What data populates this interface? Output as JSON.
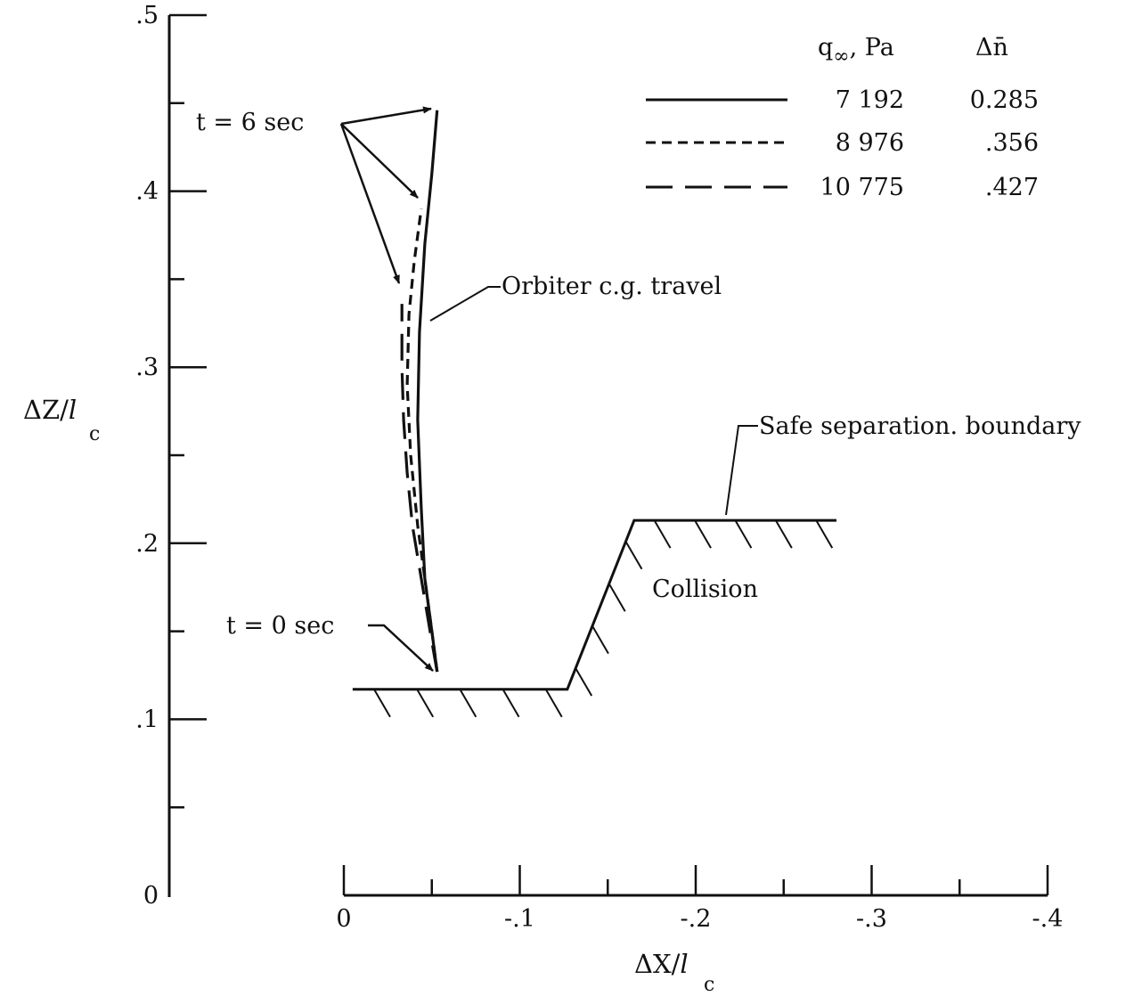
{
  "chart_data": {
    "type": "line",
    "xlabel": "ΔX/",
    "xlabel_l": "l",
    "xlabel_sub": "c",
    "ylabel": "ΔZ/",
    "ylabel_l": "l",
    "ylabel_sub": "c",
    "xlim": [
      0,
      -0.4
    ],
    "ylim": [
      0,
      0.5
    ],
    "x_tick_labels": [
      "0",
      "-.1",
      "-.2",
      "-.3",
      "-.4"
    ],
    "x_tick_values": [
      0,
      -0.1,
      -0.2,
      -0.3,
      -0.4
    ],
    "y_tick_labels": [
      "0",
      ".1",
      ".2",
      ".3",
      ".4",
      ".5"
    ],
    "y_tick_values": [
      0,
      0.1,
      0.2,
      0.3,
      0.4,
      0.5
    ],
    "legend": {
      "header_q": "q",
      "header_q_sub": "∞",
      "header_q_unit": ", Pa",
      "header_dn": "Δn̄",
      "entries": [
        {
          "style": "solid",
          "q": "7 192",
          "dn": "0.285"
        },
        {
          "style": "short-dash",
          "q": "8 976",
          "dn": ".356"
        },
        {
          "style": "long-dash",
          "q": "10 775",
          "dn": ".427"
        }
      ]
    },
    "series": [
      {
        "style": "solid",
        "points": [
          [
            -0.053,
            0.127
          ],
          [
            -0.05,
            0.15
          ],
          [
            -0.046,
            0.18
          ],
          [
            -0.044,
            0.22
          ],
          [
            -0.042,
            0.27
          ],
          [
            -0.043,
            0.32
          ],
          [
            -0.046,
            0.37
          ],
          [
            -0.05,
            0.41
          ],
          [
            -0.053,
            0.446
          ]
        ]
      },
      {
        "style": "short-dash",
        "points": [
          [
            -0.053,
            0.127
          ],
          [
            -0.05,
            0.15
          ],
          [
            -0.046,
            0.18
          ],
          [
            -0.042,
            0.21
          ],
          [
            -0.038,
            0.25
          ],
          [
            -0.036,
            0.29
          ],
          [
            -0.037,
            0.33
          ],
          [
            -0.04,
            0.36
          ],
          [
            -0.044,
            0.39
          ]
        ]
      },
      {
        "style": "long-dash",
        "points": [
          [
            -0.053,
            0.127
          ],
          [
            -0.049,
            0.15
          ],
          [
            -0.044,
            0.18
          ],
          [
            -0.039,
            0.21
          ],
          [
            -0.036,
            0.24
          ],
          [
            -0.034,
            0.27
          ],
          [
            -0.033,
            0.3
          ],
          [
            -0.033,
            0.336
          ]
        ]
      }
    ],
    "boundary": [
      [
        -0.005,
        0.117
      ],
      [
        -0.127,
        0.117
      ],
      [
        -0.165,
        0.213
      ],
      [
        -0.28,
        0.213
      ]
    ],
    "annotations": {
      "t6": "t = 6 sec",
      "t0": "t = 0 sec",
      "orbiter": "Orbiter c.g. travel",
      "safe": "Safe separation. boundary",
      "collision": "Collision"
    }
  }
}
